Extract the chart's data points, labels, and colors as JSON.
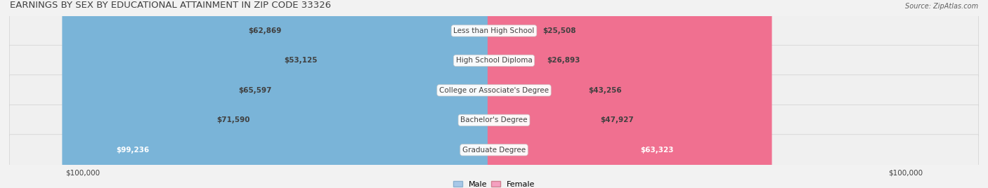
{
  "title": "EARNINGS BY SEX BY EDUCATIONAL ATTAINMENT IN ZIP CODE 33326",
  "source": "Source: ZipAtlas.com",
  "categories": [
    "Less than High School",
    "High School Diploma",
    "College or Associate's Degree",
    "Bachelor's Degree",
    "Graduate Degree"
  ],
  "male_values": [
    62869,
    53125,
    65597,
    71590,
    99236
  ],
  "female_values": [
    25508,
    26893,
    43256,
    47927,
    63323
  ],
  "male_color": "#91b9e0",
  "female_color": "#f090b0",
  "male_color_last": "#6aaad4",
  "female_color_last": "#f0609a",
  "male_label": "Male",
  "female_label": "Female",
  "max_value": 100000,
  "bg_color": "#f0f0f0",
  "row_bg_light": "#f5f5f5",
  "row_bg_dark": "#e8e8e8"
}
